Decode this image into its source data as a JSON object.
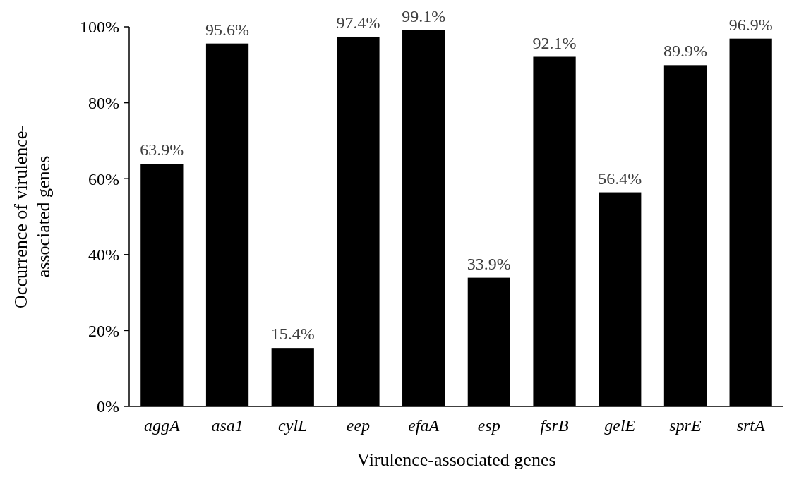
{
  "chart_data": {
    "type": "bar",
    "xlabel": "Virulence-associated genes",
    "ylabel": "Occurrence of virulence-associated genes",
    "categories": [
      "aggA",
      "asa1",
      "cylL",
      "eep",
      "efaA",
      "esp",
      "fsrB",
      "gelE",
      "sprE",
      "srtA"
    ],
    "values": [
      63.9,
      95.6,
      15.4,
      97.4,
      99.1,
      33.9,
      92.1,
      56.4,
      89.9,
      96.9
    ],
    "value_labels": [
      "63.9%",
      "95.6%",
      "15.4%",
      "97.4%",
      "99.1%",
      "33.9%",
      "92.1%",
      "56.4%",
      "89.9%",
      "96.9%"
    ],
    "color": "#000000",
    "ylim": [
      0,
      100
    ],
    "yticks": [
      {
        "value": 0,
        "label": "0%"
      },
      {
        "value": 20,
        "label": "20%"
      },
      {
        "value": 40,
        "label": "40%"
      },
      {
        "value": 60,
        "label": "60%"
      },
      {
        "value": 80,
        "label": "80%"
      },
      {
        "value": 100,
        "label": "100%"
      }
    ],
    "grid": false
  }
}
